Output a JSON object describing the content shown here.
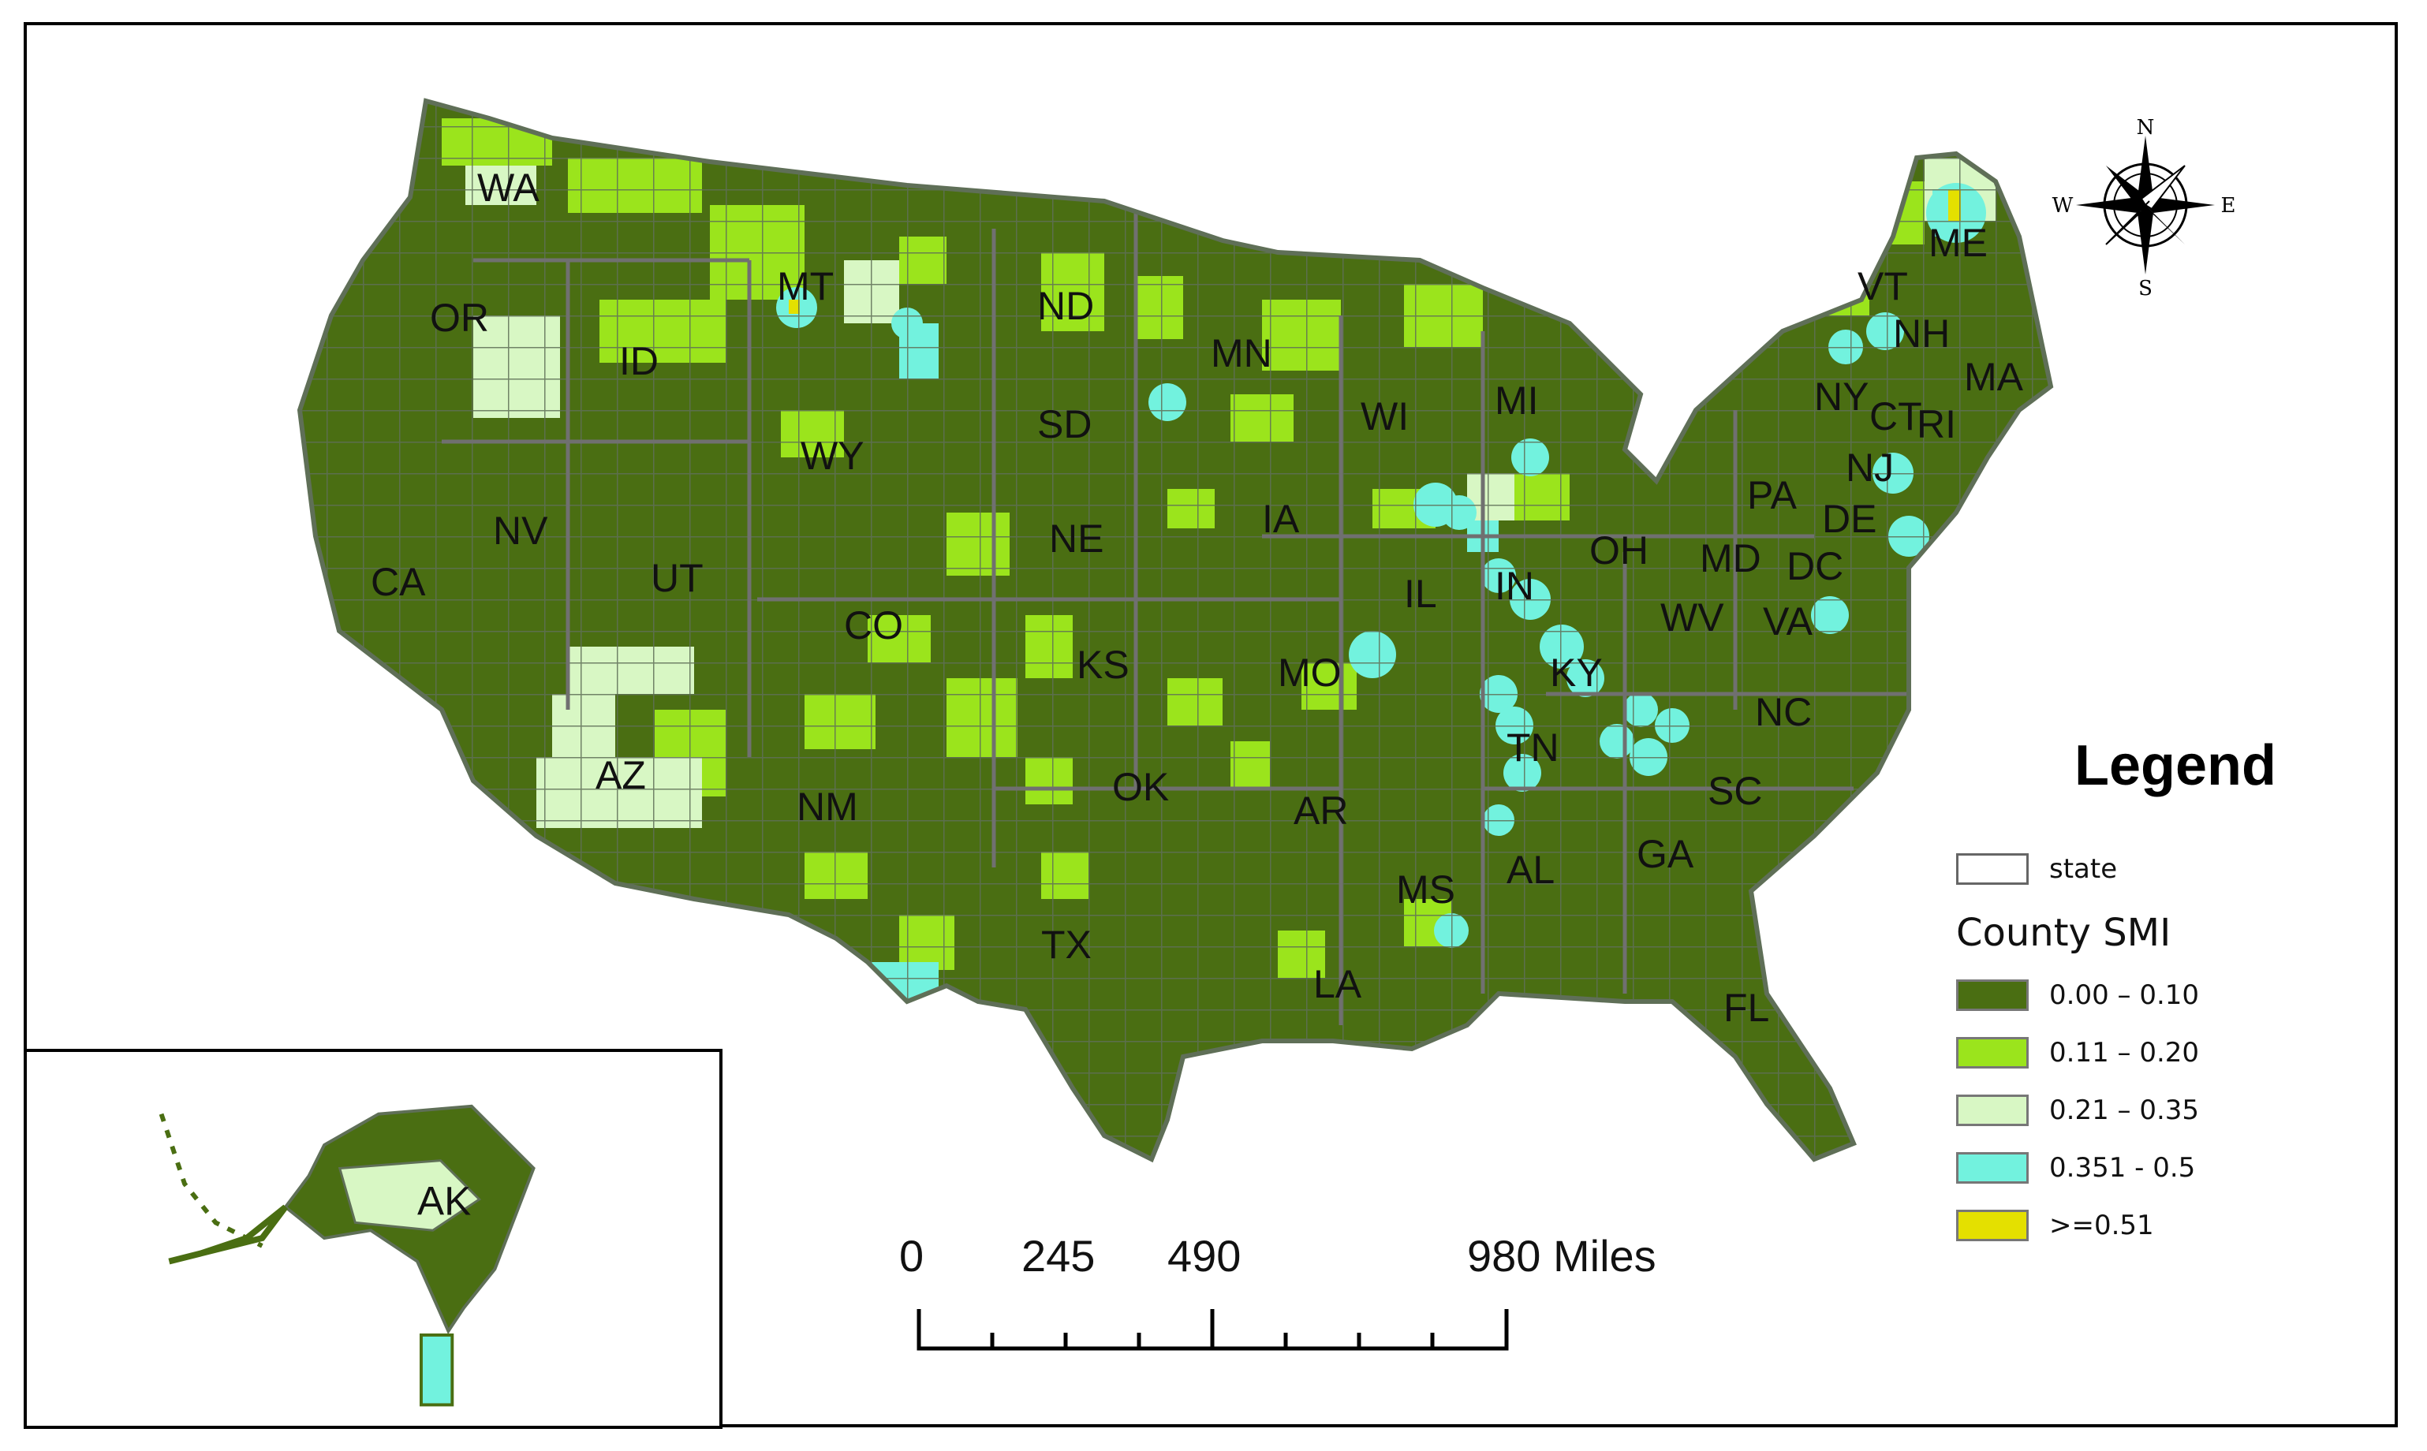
{
  "map": {
    "state_labels": [
      "WA",
      "OR",
      "ID",
      "MT",
      "ND",
      "MN",
      "WI",
      "MI",
      "NY",
      "VT",
      "NH",
      "ME",
      "MA",
      "CT",
      "RI",
      "NJ",
      "PA",
      "DE",
      "MD",
      "DC",
      "OH",
      "IN",
      "IL",
      "IA",
      "SD",
      "NE",
      "WY",
      "UT",
      "NV",
      "CA",
      "CO",
      "KS",
      "MO",
      "KY",
      "WV",
      "VA",
      "NC",
      "TN",
      "SC",
      "GA",
      "AL",
      "MS",
      "AR",
      "OK",
      "NM",
      "AZ",
      "TX",
      "LA",
      "FL"
    ],
    "inset_label": "AK"
  },
  "legend": {
    "title": "Legend",
    "state_label": "state",
    "heading": "County SMI",
    "classes": [
      {
        "label": "0.00 – 0.10",
        "color": "#4a6e12"
      },
      {
        "label": "0.11 – 0.20",
        "color": "#9be41c"
      },
      {
        "label": "0.21 – 0.35",
        "color": "#d8f7c4"
      },
      {
        "label": "0.351 - 0.5",
        "color": "#72f2de"
      },
      {
        "label": ">=0.51",
        "color": "#e4e000"
      }
    ]
  },
  "scale": {
    "labels": [
      "0",
      "245",
      "490",
      "980 Miles"
    ]
  },
  "compass": {
    "n": "N",
    "s": "S",
    "e": "E",
    "w": "W"
  }
}
